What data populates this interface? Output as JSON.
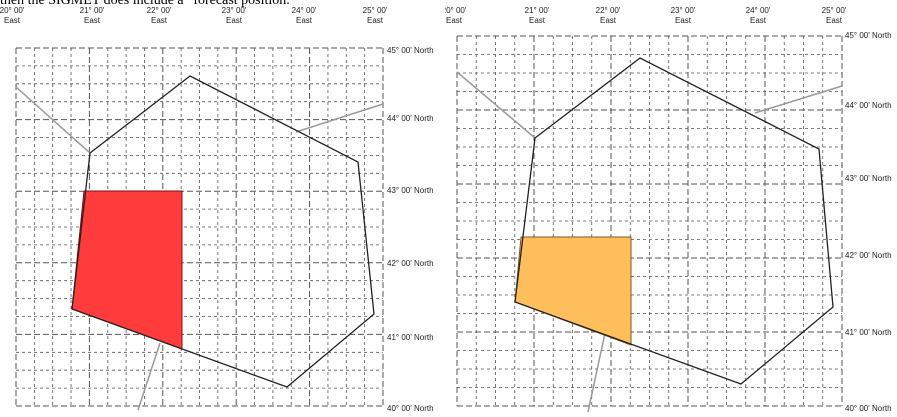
{
  "caption": "then the SIGMET does include a “forecast position.”",
  "longitude_labels": [
    {
      "deg": "20° 00'",
      "dir": "East"
    },
    {
      "deg": "21° 00'",
      "dir": "East"
    },
    {
      "deg": "22° 00'",
      "dir": "East"
    },
    {
      "deg": "23° 00'",
      "dir": "East"
    },
    {
      "deg": "24° 00'",
      "dir": "East"
    },
    {
      "deg": "25° 00'",
      "dir": "East"
    }
  ],
  "latitude_labels": [
    "45° 00' North",
    "44° 00' North",
    "43° 00' North",
    "42° 00' North",
    "41° 00' North",
    "40° 00' North"
  ],
  "maps": [
    {
      "name": "left",
      "area_color": "#ff3b3b",
      "area_stroke": "#7a1010"
    },
    {
      "name": "right",
      "area_color": "#ffbe5c",
      "area_stroke": "#7a5a20"
    }
  ],
  "colors": {
    "grid": "#555555",
    "boundary": "#222222",
    "border_lines": "#999999"
  }
}
